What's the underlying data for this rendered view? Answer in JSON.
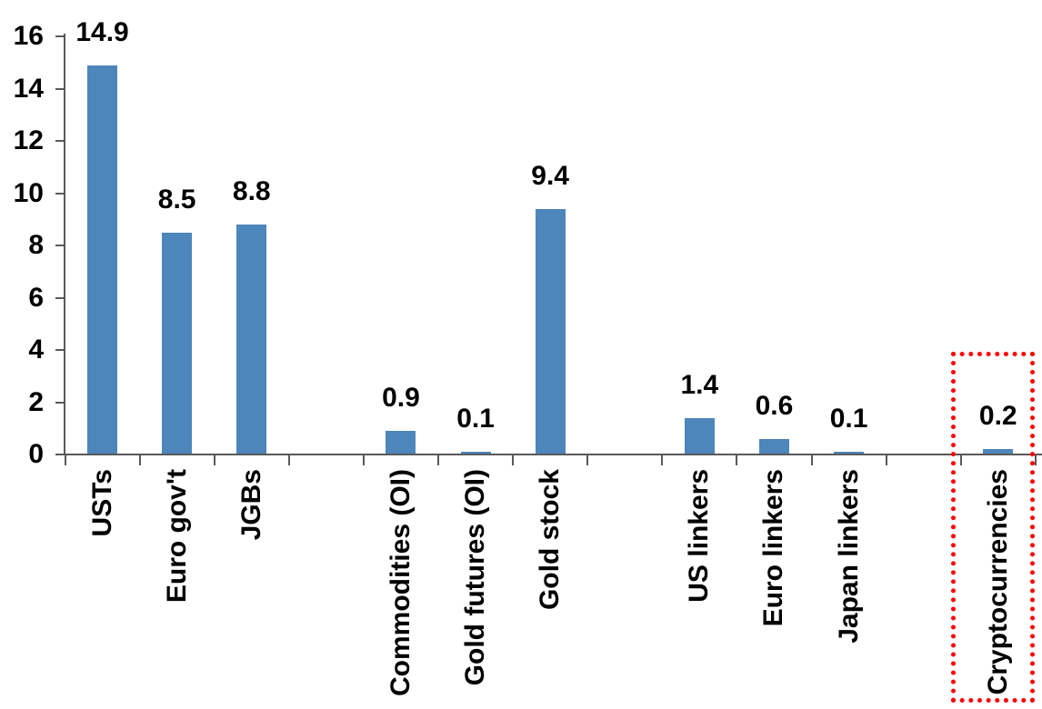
{
  "chart_data": {
    "type": "bar",
    "title": "",
    "xlabel": "",
    "ylabel": "",
    "categories": [
      "USTs",
      "Euro gov't",
      "JGBs",
      "",
      "Commodities (OI)",
      "Gold futures (OI)",
      "Gold stock",
      "",
      "US linkers",
      "Euro linkers",
      "Japan linkers",
      "",
      "Cryptocurrencies"
    ],
    "values": [
      14.9,
      8.5,
      8.8,
      null,
      0.9,
      0.1,
      9.4,
      null,
      1.4,
      0.6,
      0.1,
      null,
      0.2
    ],
    "value_label_decimals": 1,
    "ylim": [
      0,
      16
    ],
    "y_ticks": [
      0,
      2,
      4,
      6,
      8,
      10,
      12,
      14,
      16
    ],
    "grid": "off",
    "legend": "none",
    "bar_color": "#4D86BA",
    "axis_color": "#595959",
    "text_color": "#000000",
    "highlight": {
      "category": "Cryptocurrencies",
      "shape": "red-dotted-rectangle",
      "color": "#FF0000"
    }
  }
}
